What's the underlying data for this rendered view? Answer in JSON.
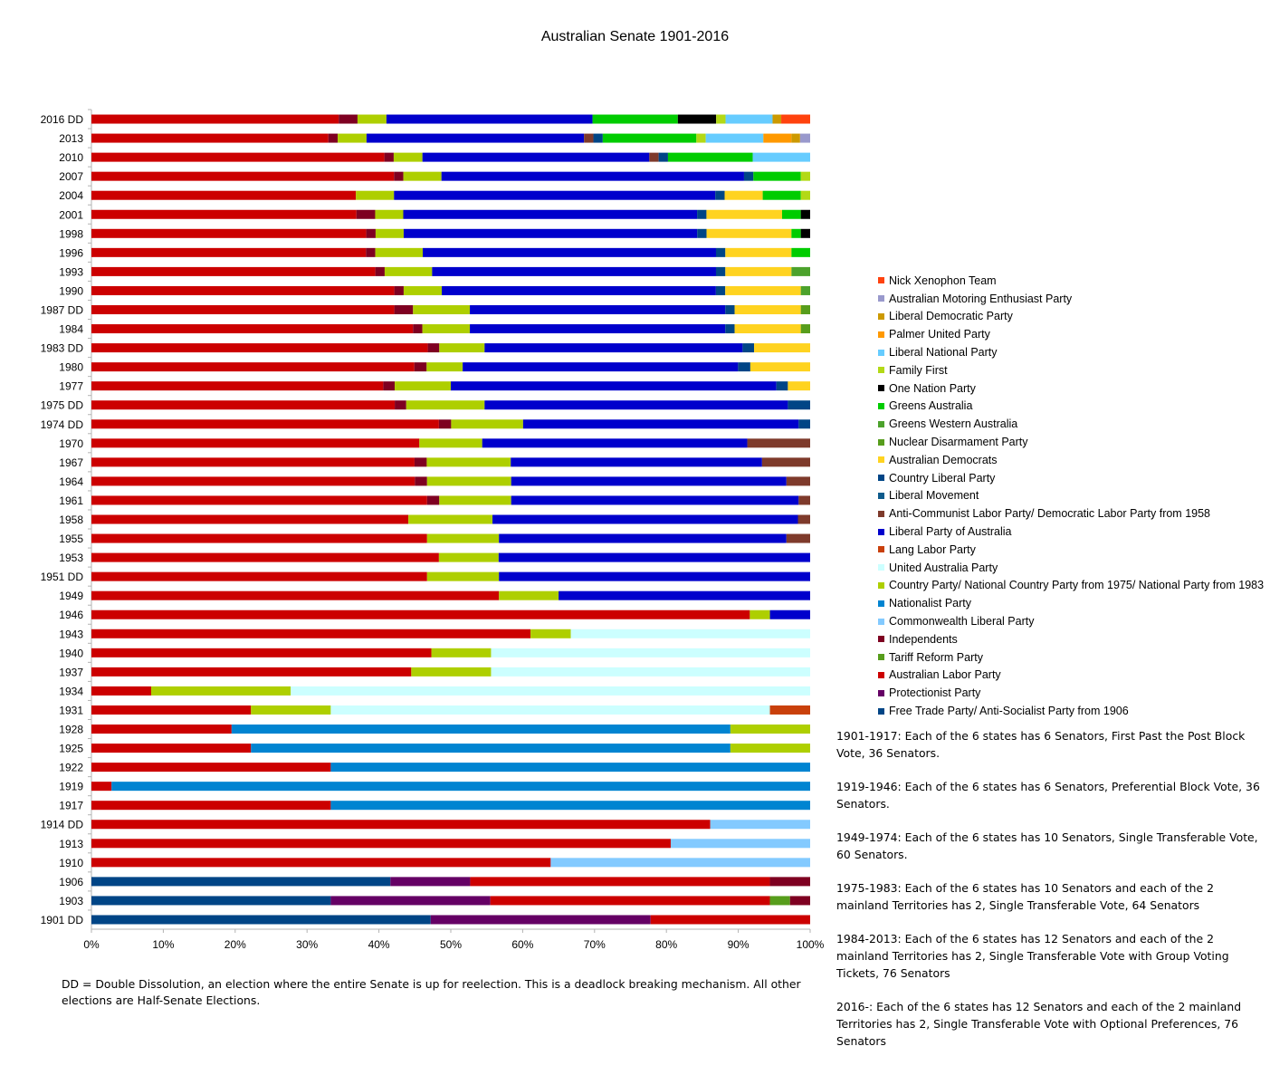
{
  "chart_data": {
    "type": "bar",
    "orientation": "horizontal",
    "stacked": "percent",
    "title": "Australian Senate 1901-2016",
    "xlabel": "",
    "ylabel": "",
    "xlim": [
      0,
      100
    ],
    "x_ticks": [
      "0%",
      "10%",
      "20%",
      "30%",
      "40%",
      "50%",
      "60%",
      "70%",
      "80%",
      "90%",
      "100%"
    ],
    "grid": false,
    "legend_position": "right",
    "categories": [
      "2016 DD",
      "2013",
      "2010",
      "2007",
      "2004",
      "2001",
      "1998",
      "1996",
      "1993",
      "1990",
      "1987 DD",
      "1984",
      "1983 DD",
      "1980",
      "1977",
      "1975 DD",
      "1974 DD",
      "1970",
      "1967",
      "1964",
      "1961",
      "1958",
      "1955",
      "1953",
      "1951 DD",
      "1949",
      "1946",
      "1943",
      "1940",
      "1937",
      "1934",
      "1931",
      "1928",
      "1925",
      "1922",
      "1919",
      "1917",
      "1914 DD",
      "1913",
      "1910",
      "1906",
      "1903",
      "1901 DD"
    ],
    "series": [
      {
        "name": "Nick Xenophon Team",
        "color": "#ff420e",
        "values": [
          4,
          0,
          0,
          0,
          0,
          0,
          0,
          0,
          0,
          0,
          0,
          0,
          0,
          0,
          0,
          0,
          0,
          0,
          0,
          0,
          0,
          0,
          0,
          0,
          0,
          0,
          0,
          0,
          0,
          0,
          0,
          0,
          0,
          0,
          0,
          0,
          0,
          0,
          0,
          0,
          0,
          0,
          0
        ]
      },
      {
        "name": "Australian Motoring Enthusiast Party",
        "color": "#9999cc",
        "values": [
          0,
          1.4,
          0,
          0,
          0,
          0,
          0,
          0,
          0,
          0,
          0,
          0,
          0,
          0,
          0,
          0,
          0,
          0,
          0,
          0,
          0,
          0,
          0,
          0,
          0,
          0,
          0,
          0,
          0,
          0,
          0,
          0,
          0,
          0,
          0,
          0,
          0,
          0,
          0,
          0,
          0,
          0,
          0
        ]
      },
      {
        "name": "Liberal Democratic Party",
        "color": "#cc9900",
        "values": [
          1.2,
          1.2,
          0,
          0,
          0,
          0,
          0,
          0,
          0,
          0,
          0,
          0,
          0,
          0,
          0,
          0,
          0,
          0,
          0,
          0,
          0,
          0,
          0,
          0,
          0,
          0,
          0,
          0,
          0,
          0,
          0,
          0,
          0,
          0,
          0,
          0,
          0,
          0,
          0,
          0,
          0,
          0,
          0
        ]
      },
      {
        "name": "Palmer United Party",
        "color": "#ff9900",
        "values": [
          0,
          3.9,
          0,
          0,
          0,
          0,
          0,
          0,
          0,
          0,
          0,
          0,
          0,
          0,
          0,
          0,
          0,
          0,
          0,
          0,
          0,
          0,
          0,
          0,
          0,
          0,
          0,
          0,
          0,
          0,
          0,
          0,
          0,
          0,
          0,
          0,
          0,
          0,
          0,
          0,
          0,
          0,
          0
        ]
      },
      {
        "name": "Liberal National Party",
        "color": "#66ccff",
        "values": [
          6.5,
          8,
          8,
          0,
          0,
          0,
          0,
          0,
          0,
          0,
          0,
          0,
          0,
          0,
          0,
          0,
          0,
          0,
          0,
          0,
          0,
          0,
          0,
          0,
          0,
          0,
          0,
          0,
          0,
          0,
          0,
          0,
          0,
          0,
          0,
          0,
          0,
          0,
          0,
          0,
          0,
          0,
          0
        ]
      },
      {
        "name": "Family First",
        "color": "#b3d916",
        "values": [
          1.3,
          1.3,
          0,
          1.3,
          1.3,
          0,
          0,
          0,
          0,
          0,
          0,
          0,
          0,
          0,
          0,
          0,
          0,
          0,
          0,
          0,
          0,
          0,
          0,
          0,
          0,
          0,
          0,
          0,
          0,
          0,
          0,
          0,
          0,
          0,
          0,
          0,
          0,
          0,
          0,
          0,
          0,
          0,
          0
        ]
      },
      {
        "name": "One Nation Party",
        "color": "#000000",
        "values": [
          5.3,
          0,
          0,
          0,
          0,
          1.3,
          1.3,
          0,
          0,
          0,
          0,
          0,
          0,
          0,
          0,
          0,
          0,
          0,
          0,
          0,
          0,
          0,
          0,
          0,
          0,
          0,
          0,
          0,
          0,
          0,
          0,
          0,
          0,
          0,
          0,
          0,
          0,
          0,
          0,
          0,
          0,
          0,
          0
        ]
      },
      {
        "name": "Greens Australia",
        "color": "#00cc00",
        "values": [
          11.8,
          13,
          11.8,
          6.6,
          5.3,
          2.6,
          1.3,
          2.6,
          0,
          0,
          0,
          0,
          0,
          0,
          0,
          0,
          0,
          0,
          0,
          0,
          0,
          0,
          0,
          0,
          0,
          0,
          0,
          0,
          0,
          0,
          0,
          0,
          0,
          0,
          0,
          0,
          0,
          0,
          0,
          0,
          0,
          0,
          0
        ]
      },
      {
        "name": "Greens Western Australia",
        "color": "#4ca22c",
        "values": [
          0,
          0,
          0,
          0,
          0,
          0,
          0,
          0,
          2.6,
          1.3,
          0,
          0,
          0,
          0,
          0,
          0,
          0,
          0,
          0,
          0,
          0,
          0,
          0,
          0,
          0,
          0,
          0,
          0,
          0,
          0,
          0,
          0,
          0,
          0,
          0,
          0,
          0,
          0,
          0,
          0,
          0,
          0,
          0
        ]
      },
      {
        "name": "Nuclear Disarmament Party",
        "color": "#579d1c",
        "values": [
          0,
          0,
          0,
          0,
          0,
          0,
          0,
          0,
          0,
          0,
          1.3,
          1.3,
          0,
          0,
          0,
          0,
          0,
          0,
          0,
          0,
          0,
          0,
          0,
          0,
          0,
          0,
          0,
          0,
          0,
          0,
          0,
          0,
          0,
          0,
          0,
          0,
          0,
          0,
          0,
          0,
          0,
          0,
          0
        ]
      },
      {
        "name": "Australian Democrats",
        "color": "#ffd320",
        "values": [
          0,
          0,
          0,
          0,
          5.3,
          10.5,
          11.8,
          9.2,
          9.2,
          10.5,
          9.2,
          9.2,
          7.8,
          7.8,
          3.1,
          0,
          0,
          0,
          0,
          0,
          0,
          0,
          0,
          0,
          0,
          0,
          0,
          0,
          0,
          0,
          0,
          0,
          0,
          0,
          0,
          0,
          0,
          0,
          0,
          0,
          0,
          0,
          0
        ]
      },
      {
        "name": "Country Liberal Party",
        "color": "#004586",
        "values": [
          0,
          1.3,
          1.3,
          1.3,
          1.3,
          1.3,
          1.3,
          1.3,
          1.3,
          1.3,
          1.3,
          1.3,
          1.6,
          1.6,
          1.6,
          3.1,
          1.6,
          0,
          0,
          0,
          0,
          0,
          0,
          0,
          0,
          0,
          0,
          0,
          0,
          0,
          0,
          0,
          0,
          0,
          0,
          0,
          0,
          0,
          0,
          0,
          0,
          0,
          0
        ]
      },
      {
        "name": "Liberal Movement",
        "color": "#0e5b8c",
        "values": [
          0,
          0,
          0,
          0,
          0,
          0,
          0,
          0,
          0,
          0,
          0,
          0,
          0,
          0,
          0,
          0,
          0,
          0,
          0,
          0,
          0,
          0,
          0,
          0,
          0,
          0,
          0,
          0,
          0,
          0,
          0,
          0,
          0,
          0,
          0,
          0,
          0,
          0,
          0,
          0,
          0,
          0,
          0
        ]
      },
      {
        "name": "Anti-Communist Labor Party/ Democratic Labor Party from 1958",
        "color": "#7e3a2b",
        "values": [
          0,
          1.3,
          1.3,
          0,
          0,
          0,
          0,
          0,
          0,
          0,
          0,
          0,
          0,
          0,
          0,
          0,
          0,
          8.3,
          6.7,
          3.3,
          1.6,
          1.7,
          3.3,
          0,
          0,
          0,
          0,
          0,
          0,
          0,
          0,
          0,
          0,
          0,
          0,
          0,
          0,
          0,
          0,
          0,
          0,
          0,
          0
        ]
      },
      {
        "name": "Liberal Party of Australia",
        "color": "#0000cc",
        "values": [
          28.5,
          30.2,
          31.6,
          42.1,
          44.7,
          40.8,
          40.8,
          40.8,
          39.5,
          38.1,
          35.5,
          35.5,
          35.9,
          35.9,
          45.3,
          42.2,
          38.3,
          35,
          35,
          38.3,
          40,
          42.5,
          40,
          43.3,
          43.3,
          35,
          5.6,
          0,
          0,
          0,
          0,
          0,
          0,
          0,
          0,
          0,
          0,
          0,
          0,
          0,
          0,
          0,
          0
        ]
      },
      {
        "name": "Lang Labor Party",
        "color": "#c9400b",
        "values": [
          0,
          0,
          0,
          0,
          0,
          0,
          0,
          0,
          0,
          0,
          0,
          0,
          0,
          0,
          0,
          0,
          0,
          0,
          0,
          0,
          0,
          0,
          0,
          0,
          0,
          0,
          0,
          0,
          0,
          0,
          0,
          5.6,
          0,
          0,
          0,
          0,
          0,
          0,
          0,
          0,
          0,
          0,
          0
        ]
      },
      {
        "name": "United Australia Party",
        "color": "#ccffff",
        "values": [
          0,
          0,
          0,
          0,
          0,
          0,
          0,
          0,
          0,
          0,
          0,
          0,
          0,
          0,
          0,
          0,
          0,
          0,
          0,
          0,
          0,
          0,
          0,
          0,
          0,
          0,
          0,
          33.3,
          44.4,
          44.4,
          72.2,
          61.1,
          0,
          0,
          0,
          0,
          0,
          0,
          0,
          0,
          0,
          0,
          0
        ]
      },
      {
        "name": "Country Party/ National Country Party from 1975/ National Party from 1983",
        "color": "#aecf00",
        "values": [
          4,
          4,
          4,
          5.3,
          5.3,
          3.9,
          3.9,
          6.6,
          6.6,
          5.3,
          7.9,
          6.6,
          6.3,
          4.7,
          7.8,
          10.9,
          10,
          8.3,
          11.7,
          11.7,
          10,
          11.7,
          10,
          8.3,
          10,
          8.3,
          2.8,
          5.6,
          8.3,
          11.1,
          19.4,
          11.1,
          11.1,
          11.1,
          0,
          0,
          0,
          0,
          0,
          0,
          0,
          0,
          0
        ]
      },
      {
        "name": "Nationalist Party",
        "color": "#0084d1",
        "values": [
          0,
          0,
          0,
          0,
          0,
          0,
          0,
          0,
          0,
          0,
          0,
          0,
          0,
          0,
          0,
          0,
          0,
          0,
          0,
          0,
          0,
          0,
          0,
          0,
          0,
          0,
          0,
          0,
          0,
          0,
          0,
          0,
          69.4,
          66.7,
          66.7,
          97.2,
          66.7,
          0,
          0,
          0,
          0,
          0,
          0
        ]
      },
      {
        "name": "Commonwealth Liberal Party",
        "color": "#83caff",
        "values": [
          0,
          0,
          0,
          0,
          0,
          0,
          0,
          0,
          0,
          0,
          0,
          0,
          0,
          0,
          0,
          0,
          0,
          0,
          0,
          0,
          0,
          0,
          0,
          0,
          0,
          0,
          0,
          0,
          0,
          0,
          0,
          0,
          0,
          0,
          0,
          0,
          0,
          13.9,
          19.4,
          36.1,
          0,
          0,
          0
        ]
      },
      {
        "name": "Independents",
        "color": "#7e0021",
        "values": [
          2.6,
          1.3,
          1.3,
          1.3,
          0,
          2.6,
          1.3,
          1.3,
          1.3,
          1.3,
          2.6,
          1.3,
          1.6,
          1.6,
          1.6,
          1.6,
          1.7,
          0,
          1.7,
          1.7,
          1.7,
          0,
          0,
          0,
          0,
          0,
          0,
          0,
          0,
          0,
          0,
          0,
          0,
          0,
          0,
          0,
          0,
          0,
          0,
          0,
          5.6,
          2.8,
          0
        ]
      },
      {
        "name": "Tariff Reform Party",
        "color": "#579d1c",
        "values": [
          0,
          0,
          0,
          0,
          0,
          0,
          0,
          0,
          0,
          0,
          0,
          0,
          0,
          0,
          0,
          0,
          0,
          0,
          0,
          0,
          0,
          0,
          0,
          0,
          0,
          0,
          0,
          0,
          0,
          0,
          0,
          0,
          0,
          0,
          0,
          0,
          0,
          0,
          0,
          0,
          0,
          2.8,
          0
        ]
      },
      {
        "name": "Australian Labor Party",
        "color": "#cc0000",
        "values": [
          34.2,
          32.9,
          40.8,
          42.1,
          36.8,
          36.8,
          38.2,
          38.2,
          39.5,
          42.1,
          42.1,
          44.7,
          46.8,
          42.1,
          40.6,
          42.2,
          48.3,
          43.3,
          45,
          45,
          46.7,
          44.1,
          46.7,
          48.3,
          46.7,
          56.7,
          91.7,
          61.1,
          47.3,
          44.5,
          8.3,
          22.2,
          19.5,
          22.2,
          33.3,
          2.8,
          33.3,
          86.1,
          80.6,
          63.9,
          41.7,
          38.9,
          22.2
        ]
      },
      {
        "name": "Protectionist Party",
        "color": "#650065",
        "values": [
          0,
          0,
          0,
          0,
          0,
          0,
          0,
          0,
          0,
          0,
          0,
          0,
          0,
          0,
          0,
          0,
          0,
          0,
          0,
          0,
          0,
          0,
          0,
          0,
          0,
          0,
          0,
          0,
          0,
          0,
          0,
          0,
          0,
          0,
          0,
          0,
          0,
          0,
          0,
          0,
          11.1,
          22.2,
          30.6
        ]
      },
      {
        "name": "Free Trade Party/ Anti-Socialist Party from 1906",
        "color": "#004586",
        "values": [
          0,
          0,
          0,
          0,
          0,
          0,
          0,
          0,
          0,
          0,
          0,
          0,
          0,
          0,
          0,
          0,
          0,
          0,
          0,
          0,
          0,
          0,
          0,
          0,
          0,
          0,
          0,
          0,
          0,
          0,
          0,
          0,
          0,
          0,
          0,
          0,
          0,
          0,
          0,
          0,
          41.6,
          33.3,
          47.2
        ]
      }
    ]
  },
  "notes": [
    "1901-1917: Each of the 6 states has 6 Senators, First Past the Post Block Vote, 36 Senators.",
    "1919-1946: Each of the 6 states has 6 Senators, Preferential Block Vote, 36 Senators.",
    "1949-1974: Each of the 6 states has 10 Senators, Single Transferable Vote, 60 Senators.",
    "1975-1983: Each of the 6 states has 10 Senators and each of the 2 mainland Territories has 2, Single Transferable Vote, 64 Senators",
    "1984-2013: Each of the 6 states has 12 Senators and each of the 2 mainland Territories has 2, Single Transferable Vote with Group Voting Tickets, 76 Senators",
    "2016-: Each of the 6 states has 12 Senators and each of the 2 mainland Territories has 2, Single Transferable Vote with Optional Preferences, 76 Senators"
  ],
  "footnote": "DD = Double Dissolution, an election where the entire Senate is up for reelection. This is a deadlock breaking mechanism. All other elections are Half-Senate Elections."
}
